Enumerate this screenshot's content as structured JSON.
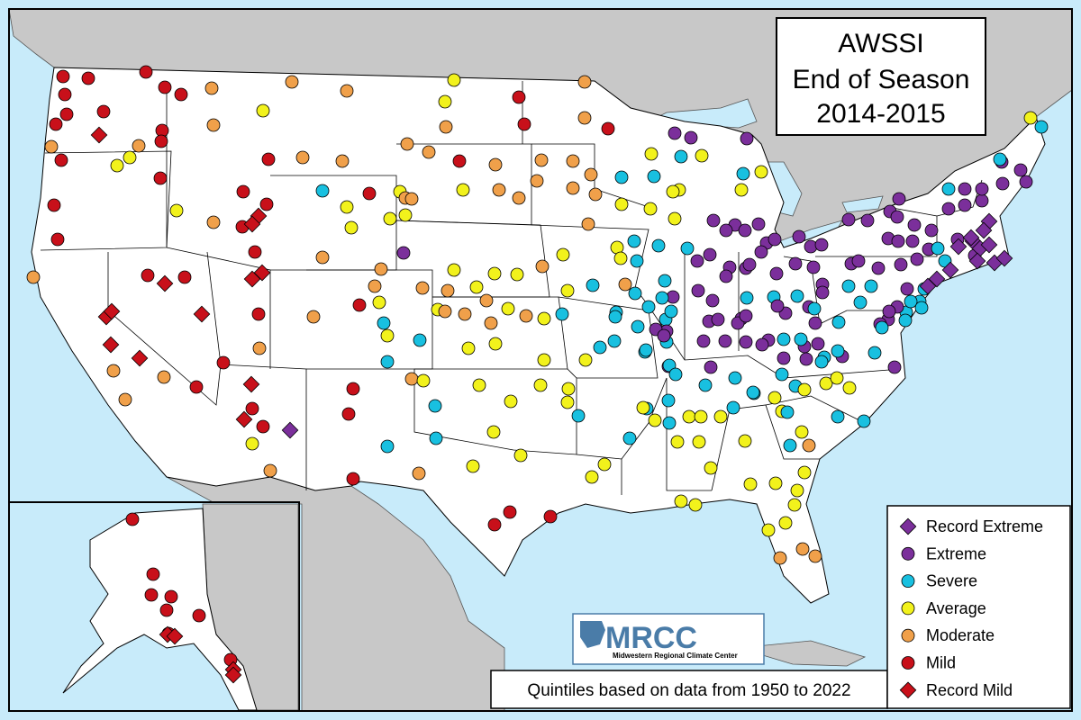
{
  "title": {
    "line1": "AWSSI",
    "line2": "End of Season",
    "line3": "2014-2015"
  },
  "legend": {
    "placement": "bottom-right",
    "items": [
      {
        "key": "record_extreme",
        "label": "Record Extreme",
        "shape": "diamond",
        "color": "#7b2f9b"
      },
      {
        "key": "extreme",
        "label": "Extreme",
        "shape": "circle",
        "color": "#7b2f9b"
      },
      {
        "key": "severe",
        "label": "Severe",
        "shape": "circle",
        "color": "#18c0e0"
      },
      {
        "key": "average",
        "label": "Average",
        "shape": "circle",
        "color": "#f2f21c"
      },
      {
        "key": "moderate",
        "label": "Moderate",
        "shape": "circle",
        "color": "#f0a04a"
      },
      {
        "key": "mild",
        "label": "Mild",
        "shape": "circle",
        "color": "#c8101a"
      },
      {
        "key": "record_mild",
        "label": "Record Mild",
        "shape": "diamond",
        "color": "#c8101a"
      }
    ]
  },
  "footnote": "Quintiles based on data from 1950 to 2022",
  "logo": {
    "text": "MRCC",
    "subtitle": "Midwestern Regional Climate Center"
  },
  "colors": {
    "water": "#c8ebfa",
    "land": "#ffffff",
    "other_land": "#c8c8c8",
    "border": "#000000"
  }
}
